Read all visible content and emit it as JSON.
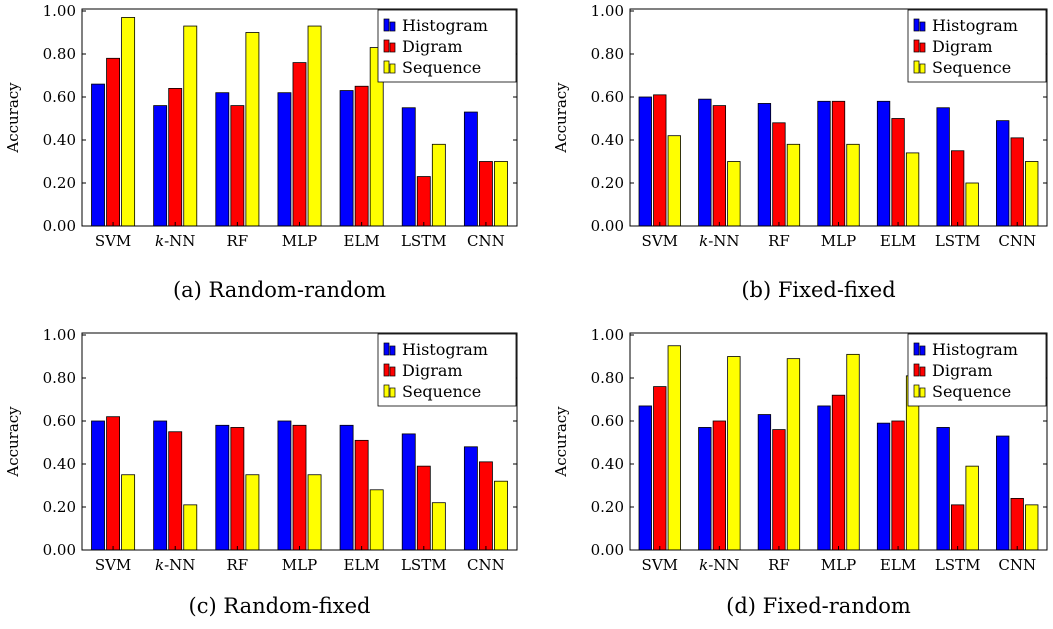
{
  "series_names": [
    "Histogram",
    "Digram",
    "Sequence"
  ],
  "series_colors": [
    "#0000ff",
    "#ff0000",
    "#ffff00"
  ],
  "chart_data": [
    {
      "type": "bar",
      "caption": "(a) Random-random",
      "ylabel": "Accuracy",
      "categories": [
        "SVM",
        "k-NN",
        "RF",
        "MLP",
        "ELM",
        "LSTM",
        "CNN"
      ],
      "ylim": [
        0,
        1.0
      ],
      "yticks": [
        "0.00",
        "0.20",
        "0.40",
        "0.60",
        "0.80",
        "1.00"
      ],
      "legend": "top-right",
      "series": [
        {
          "name": "Histogram",
          "values": [
            0.66,
            0.56,
            0.62,
            0.62,
            0.63,
            0.55,
            0.53
          ]
        },
        {
          "name": "Digram",
          "values": [
            0.78,
            0.64,
            0.56,
            0.76,
            0.65,
            0.23,
            0.3
          ]
        },
        {
          "name": "Sequence",
          "values": [
            0.97,
            0.93,
            0.9,
            0.93,
            0.83,
            0.38,
            0.3
          ]
        }
      ]
    },
    {
      "type": "bar",
      "caption": "(b) Fixed-fixed",
      "ylabel": "Accuracy",
      "categories": [
        "SVM",
        "k-NN",
        "RF",
        "MLP",
        "ELM",
        "LSTM",
        "CNN"
      ],
      "ylim": [
        0,
        1.0
      ],
      "yticks": [
        "0.00",
        "0.20",
        "0.40",
        "0.60",
        "0.80",
        "1.00"
      ],
      "legend": "top-right",
      "series": [
        {
          "name": "Histogram",
          "values": [
            0.6,
            0.59,
            0.57,
            0.58,
            0.58,
            0.55,
            0.49
          ]
        },
        {
          "name": "Digram",
          "values": [
            0.61,
            0.56,
            0.48,
            0.58,
            0.5,
            0.35,
            0.41
          ]
        },
        {
          "name": "Sequence",
          "values": [
            0.42,
            0.3,
            0.38,
            0.38,
            0.34,
            0.2,
            0.3
          ]
        }
      ]
    },
    {
      "type": "bar",
      "caption": "(c) Random-fixed",
      "ylabel": "Accuracy",
      "categories": [
        "SVM",
        "k-NN",
        "RF",
        "MLP",
        "ELM",
        "LSTM",
        "CNN"
      ],
      "ylim": [
        0,
        1.0
      ],
      "yticks": [
        "0.00",
        "0.20",
        "0.40",
        "0.60",
        "0.80",
        "1.00"
      ],
      "legend": "top-right",
      "series": [
        {
          "name": "Histogram",
          "values": [
            0.6,
            0.6,
            0.58,
            0.6,
            0.58,
            0.54,
            0.48
          ]
        },
        {
          "name": "Digram",
          "values": [
            0.62,
            0.55,
            0.57,
            0.58,
            0.51,
            0.39,
            0.41
          ]
        },
        {
          "name": "Sequence",
          "values": [
            0.35,
            0.21,
            0.35,
            0.35,
            0.28,
            0.22,
            0.32
          ]
        }
      ]
    },
    {
      "type": "bar",
      "caption": "(d) Fixed-random",
      "ylabel": "Accuracy",
      "categories": [
        "SVM",
        "k-NN",
        "RF",
        "MLP",
        "ELM",
        "LSTM",
        "CNN"
      ],
      "ylim": [
        0,
        1.0
      ],
      "yticks": [
        "0.00",
        "0.20",
        "0.40",
        "0.60",
        "0.80",
        "1.00"
      ],
      "legend": "top-right",
      "series": [
        {
          "name": "Histogram",
          "values": [
            0.67,
            0.57,
            0.63,
            0.67,
            0.59,
            0.57,
            0.53
          ]
        },
        {
          "name": "Digram",
          "values": [
            0.76,
            0.6,
            0.56,
            0.72,
            0.6,
            0.21,
            0.24
          ]
        },
        {
          "name": "Sequence",
          "values": [
            0.95,
            0.9,
            0.89,
            0.91,
            0.81,
            0.39,
            0.21
          ]
        }
      ]
    }
  ]
}
